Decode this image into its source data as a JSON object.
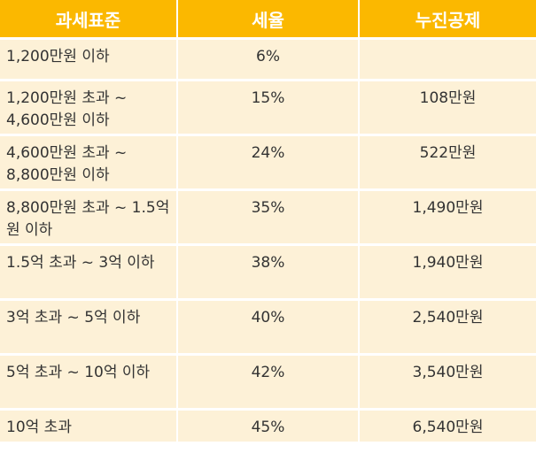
{
  "headers": {
    "bracket": "과세표준",
    "rate": "세율",
    "deduction": "누진공제"
  },
  "rows": [
    {
      "bracket": "1,200만원 이하",
      "rate": "6%",
      "deduction": ""
    },
    {
      "bracket": "1,200만원 초과 ~ 4,600만원 이하",
      "rate": "15%",
      "deduction": "108만원"
    },
    {
      "bracket": "4,600만원 초과 ~ 8,800만원 이하",
      "rate": "24%",
      "deduction": "522만원"
    },
    {
      "bracket": "8,800만원 초과 ~ 1.5억원 이하",
      "rate": "35%",
      "deduction": "1,490만원"
    },
    {
      "bracket": "1.5억 초과 ~ 3억 이하",
      "rate": "38%",
      "deduction": "1,940만원"
    },
    {
      "bracket": "3억 초과 ~ 5억 이하",
      "rate": "40%",
      "deduction": "2,540만원"
    },
    {
      "bracket": "5억 초과 ~ 10억 이하",
      "rate": "42%",
      "deduction": "3,540만원"
    },
    {
      "bracket": "10억 초과",
      "rate": "45%",
      "deduction": "6,540만원"
    }
  ],
  "colors": {
    "header_bg": "#fbb800",
    "header_text": "#ffffff",
    "row_bg": "#fdf1d7",
    "row_text": "#333333"
  }
}
